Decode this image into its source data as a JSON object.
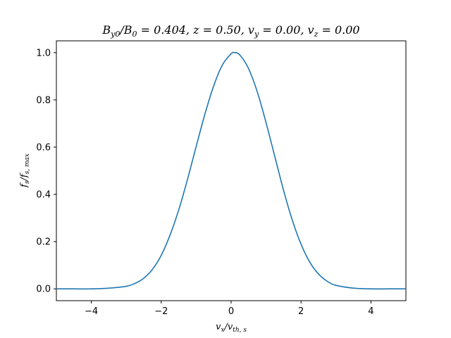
{
  "chart_data": {
    "type": "line",
    "title": "B_{y0}/B_0 = 0.404, z = 0.50, v_y = 0.00, v_z = 0.00",
    "title_parts": {
      "main": "B",
      "main_sub": "y0",
      "slash": "/B",
      "slash_sub": "0",
      "rest1": " = 0.404, z = 0.50, v",
      "vy_sub": "y",
      "rest2": " = 0.00, v",
      "vz_sub": "z",
      "rest3": " = 0.00"
    },
    "xlabel": "v_x/v_{th,s}",
    "xlabel_parts": {
      "a": "v",
      "a_sub": "x",
      "b": "/v",
      "b_sub": "th, s"
    },
    "ylabel": "f_s/f_{s,max}",
    "ylabel_parts": {
      "a": "f",
      "a_sub": "s",
      "b": "/f",
      "b_sub": "s, max"
    },
    "xlim": [
      -5,
      5
    ],
    "ylim": [
      -0.05,
      1.05
    ],
    "xticks": [
      -4,
      -2,
      0,
      2,
      4
    ],
    "xtick_labels": [
      "−4",
      "−2",
      "0",
      "2",
      "4"
    ],
    "yticks": [
      0.0,
      0.2,
      0.4,
      0.6,
      0.8,
      1.0
    ],
    "ytick_labels": [
      "0.0",
      "0.2",
      "0.4",
      "0.6",
      "0.8",
      "1.0"
    ],
    "grid": false,
    "series": [
      {
        "color": "#1f77b4",
        "x": [
          -5.0,
          -4.5,
          -4.0,
          -3.5,
          -3.0,
          -2.75,
          -2.5,
          -2.25,
          -2.0,
          -1.75,
          -1.5,
          -1.25,
          -1.0,
          -0.75,
          -0.5,
          -0.25,
          0.0,
          0.1,
          0.25,
          0.5,
          0.75,
          1.0,
          1.25,
          1.5,
          1.75,
          2.0,
          2.25,
          2.5,
          2.75,
          3.0,
          3.5,
          4.0,
          4.5,
          5.0
        ],
        "y": [
          0.0,
          0.0,
          0.0,
          0.003,
          0.011,
          0.023,
          0.045,
          0.083,
          0.142,
          0.227,
          0.334,
          0.463,
          0.603,
          0.74,
          0.859,
          0.948,
          0.995,
          1.0,
          0.99,
          0.932,
          0.833,
          0.703,
          0.56,
          0.417,
          0.291,
          0.189,
          0.113,
          0.063,
          0.032,
          0.015,
          0.003,
          0.0,
          0.0,
          0.0
        ]
      }
    ]
  }
}
